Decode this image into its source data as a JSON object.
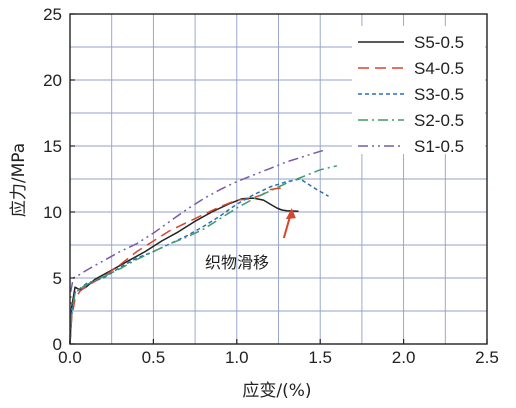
{
  "chart_data": {
    "type": "line",
    "xlabel": "应变/(%)",
    "ylabel": "应力/MPa",
    "xlim": [
      0.0,
      2.5
    ],
    "ylim": [
      0,
      25
    ],
    "xticks": [
      "0.0",
      "0.5",
      "1.0",
      "1.5",
      "2.0",
      "2.5"
    ],
    "yticks": [
      "0",
      "5",
      "10",
      "15",
      "20",
      "25"
    ],
    "grid": true,
    "legend_position": "top-right",
    "annotation": {
      "text": "织物滑移",
      "arrow_to": [
        1.33,
        10.6
      ]
    },
    "series": [
      {
        "name": "S5-0.5",
        "color": "#222222",
        "dash": "",
        "x": [
          0.0,
          0.01,
          0.03,
          0.06,
          0.08,
          0.1,
          0.15,
          0.25,
          0.35,
          0.45,
          0.55,
          0.65,
          0.75,
          0.85,
          0.95,
          1.03,
          1.1,
          1.16,
          1.2,
          1.24,
          1.27,
          1.3,
          1.37
        ],
        "y": [
          0.0,
          2.8,
          4.3,
          4.1,
          4.2,
          4.35,
          4.9,
          5.6,
          6.3,
          7.0,
          7.8,
          8.5,
          9.3,
          10.0,
          10.6,
          11.0,
          11.05,
          10.9,
          10.6,
          10.3,
          10.15,
          10.1,
          10.05
        ]
      },
      {
        "name": "S4-0.5",
        "color": "#d8452c",
        "dash": "11,6",
        "x": [
          0.0,
          0.01,
          0.03,
          0.06,
          0.1,
          0.2,
          0.3,
          0.4,
          0.5,
          0.6,
          0.7,
          0.8,
          0.9,
          1.0,
          1.08,
          1.15,
          1.2,
          1.25,
          1.3
        ],
        "y": [
          0.0,
          2.0,
          3.4,
          4.0,
          4.4,
          5.1,
          6.0,
          7.0,
          7.8,
          8.6,
          9.2,
          9.8,
          10.4,
          10.9,
          11.0,
          11.3,
          11.7,
          11.8,
          11.75
        ]
      },
      {
        "name": "S3-0.5",
        "color": "#2a6fb5",
        "dash": "4,3",
        "x": [
          0.0,
          0.01,
          0.03,
          0.06,
          0.1,
          0.2,
          0.3,
          0.4,
          0.5,
          0.6,
          0.7,
          0.8,
          0.9,
          1.0,
          1.1,
          1.2,
          1.3,
          1.38,
          1.43,
          1.48,
          1.55
        ],
        "y": [
          0.0,
          2.2,
          3.9,
          4.2,
          4.6,
          5.0,
          5.8,
          6.5,
          7.0,
          7.6,
          8.2,
          8.9,
          9.7,
          10.6,
          11.3,
          11.9,
          12.3,
          12.5,
          12.1,
          11.7,
          11.2
        ]
      },
      {
        "name": "S2-0.5",
        "color": "#3e9c6a",
        "dash": "10,4,2,4",
        "x": [
          0.0,
          0.01,
          0.03,
          0.06,
          0.1,
          0.2,
          0.3,
          0.4,
          0.5,
          0.6,
          0.7,
          0.8,
          0.9,
          1.0,
          1.1,
          1.2,
          1.3,
          1.4,
          1.5,
          1.6
        ],
        "y": [
          0.0,
          2.5,
          3.8,
          4.2,
          4.5,
          5.1,
          5.7,
          6.4,
          7.0,
          7.6,
          8.1,
          8.7,
          9.5,
          10.3,
          11.0,
          11.6,
          12.2,
          12.7,
          13.2,
          13.5
        ]
      },
      {
        "name": "S1-0.5",
        "color": "#7a5aa8",
        "dash": "10,4,2,4,2,4",
        "x": [
          0.0,
          0.005,
          0.02,
          0.05,
          0.1,
          0.2,
          0.3,
          0.4,
          0.5,
          0.6,
          0.7,
          0.8,
          0.9,
          1.0,
          1.1,
          1.2,
          1.3,
          1.4,
          1.5,
          1.53
        ],
        "y": [
          0.0,
          4.0,
          5.0,
          5.2,
          5.6,
          6.3,
          7.0,
          7.6,
          8.4,
          9.3,
          10.2,
          11.0,
          11.7,
          12.3,
          12.8,
          13.3,
          13.8,
          14.2,
          14.6,
          14.7
        ]
      }
    ]
  }
}
